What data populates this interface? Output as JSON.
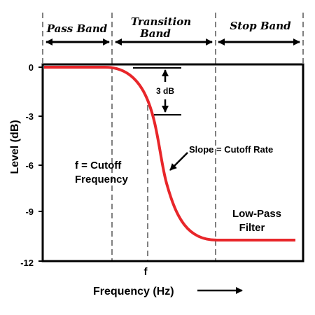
{
  "bands": {
    "pass": "Pass Band",
    "transition_line1": "Transition",
    "transition_line2": "Band",
    "stop": "Stop Band"
  },
  "axes": {
    "ylabel": "Level (dB)",
    "xlabel": "Frequency (Hz)",
    "y_ticks": [
      "0",
      "-3",
      "-6",
      "-9",
      "-12"
    ],
    "x_tick": "f"
  },
  "annotations": {
    "delta": "3 dB",
    "slope": "Slope = Cutoff Rate",
    "cutoff_line1": "f = Cutoff",
    "cutoff_line2": "Frequency",
    "filter_line1": "Low-Pass",
    "filter_line2": "Filter"
  },
  "chart_data": {
    "type": "line",
    "xlabel": "Frequency (Hz)",
    "ylabel": "Level (dB)",
    "ylim": [
      -12,
      0
    ],
    "yticks": [
      0,
      -3,
      -6,
      -9,
      -12
    ],
    "series": [
      {
        "x": [
          0.0,
          0.27,
          0.3,
          0.33,
          0.36,
          0.39,
          0.42,
          0.45,
          0.48,
          0.51,
          0.55,
          0.6,
          0.65,
          0.7,
          1.0
        ],
        "y": [
          0,
          0,
          -0.1,
          -0.5,
          -1.2,
          -2.4,
          -4.0,
          -5.8,
          -7.6,
          -9.0,
          -10.0,
          -10.5,
          -10.7,
          -10.8,
          -10.8
        ]
      }
    ],
    "grid": false,
    "colors": {
      "curve": "#e8262a",
      "frame": "#000000",
      "divider": "#808080"
    }
  }
}
